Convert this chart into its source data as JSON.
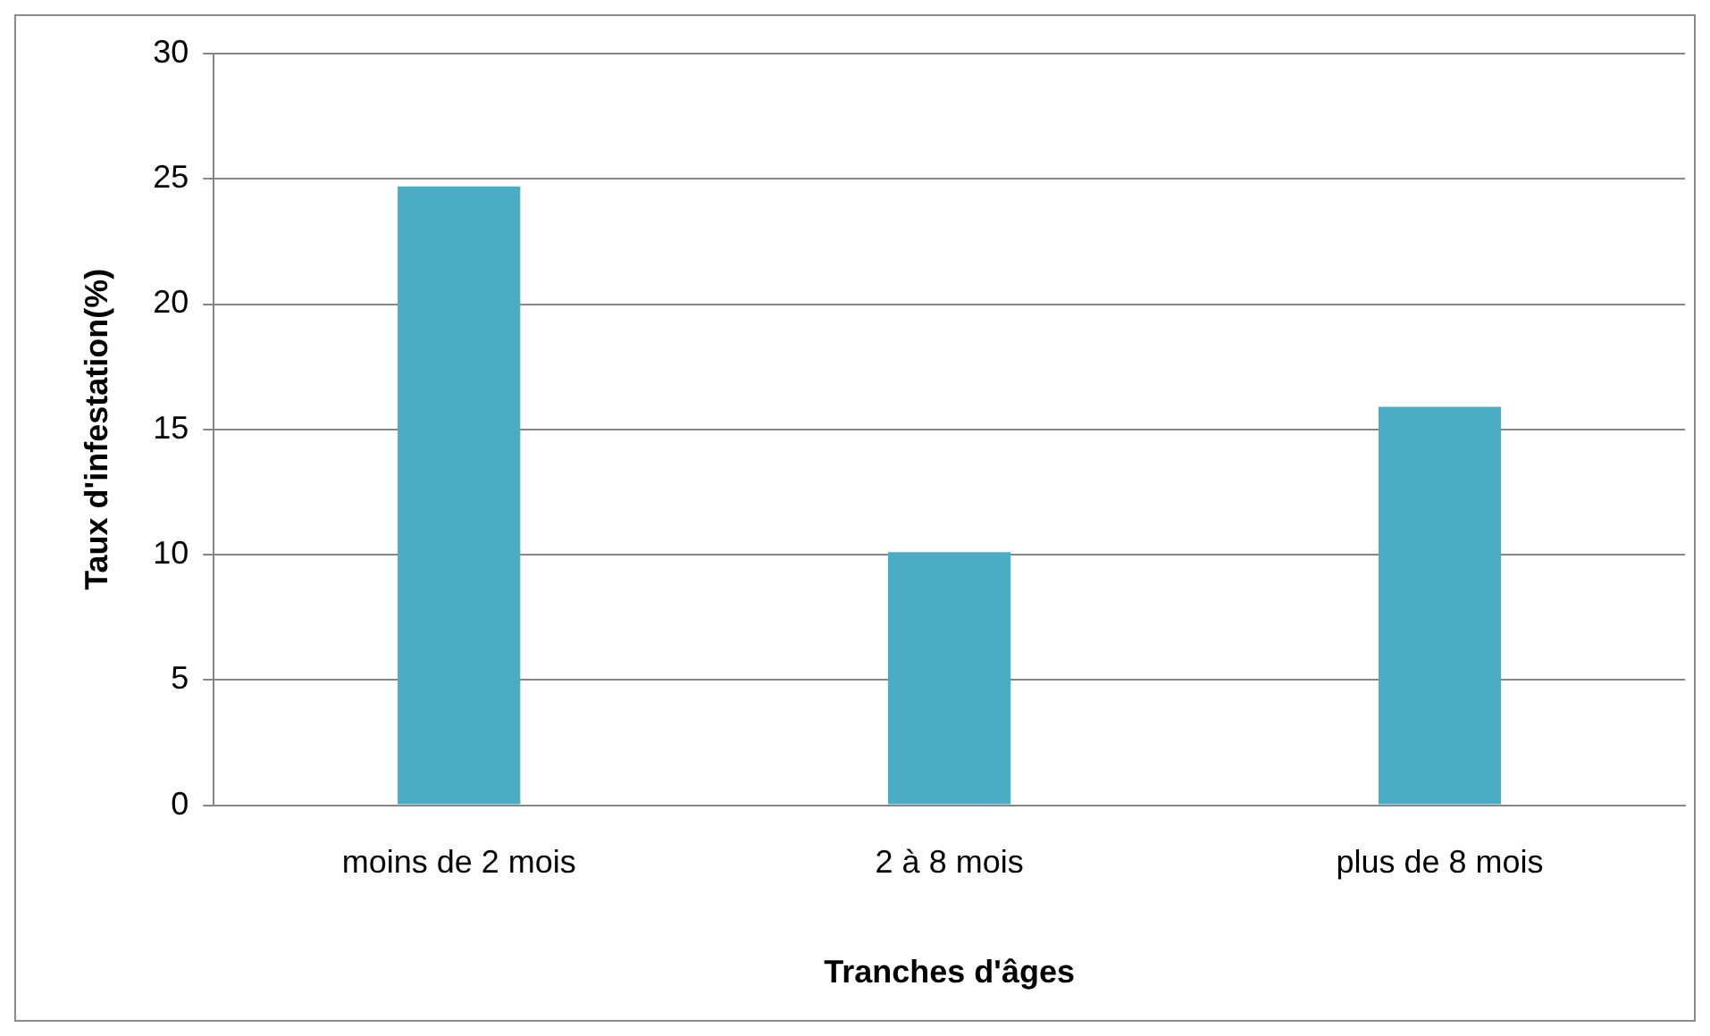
{
  "chart_data": {
    "type": "bar",
    "xlabel": "Tranches d'âges",
    "ylabel": "Taux d'infestation(%)",
    "categories": [
      "moins de 2 mois",
      "2 à 8 mois",
      "plus de 8 mois"
    ],
    "values": [
      24.7,
      10.1,
      15.9
    ],
    "color": "#4bacc6",
    "ylim": [
      0,
      30
    ],
    "yticks": [
      0,
      5,
      10,
      15,
      20,
      25,
      30
    ],
    "grid": "y",
    "legend": false
  }
}
